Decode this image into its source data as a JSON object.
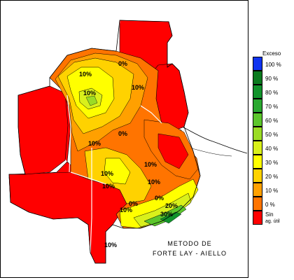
{
  "legend": {
    "title": "Exceso",
    "classes": [
      {
        "label": "100 %",
        "color": "#1034f0"
      },
      {
        "label": "90 %",
        "color": "#0a7a1e"
      },
      {
        "label": "80 %",
        "color": "#11932b"
      },
      {
        "label": "70 %",
        "color": "#2aa830"
      },
      {
        "label": "60 %",
        "color": "#5cc62c"
      },
      {
        "label": "50 %",
        "color": "#9bdc25"
      },
      {
        "label": "40 %",
        "color": "#d9f01b"
      },
      {
        "label": "30 %",
        "color": "#ffff00"
      },
      {
        "label": "20 %",
        "color": "#ffd200"
      },
      {
        "label": "10 %",
        "color": "#ffa000"
      },
      {
        "label": "0 %",
        "color": "#ff7400"
      },
      {
        "label": "Sin",
        "label2": "ag. útil",
        "color": "#ff0000"
      }
    ]
  },
  "caption": {
    "line1": "METODO DE",
    "line2": "FORTE LAY - AIELLO"
  },
  "contour_labels": [
    "0%",
    "10%",
    "10%",
    "10%",
    "0%",
    "10%",
    "10%",
    "10%",
    "10%",
    "0%",
    "10%",
    "0%",
    "30%",
    "10%",
    "20%",
    "10%"
  ]
}
